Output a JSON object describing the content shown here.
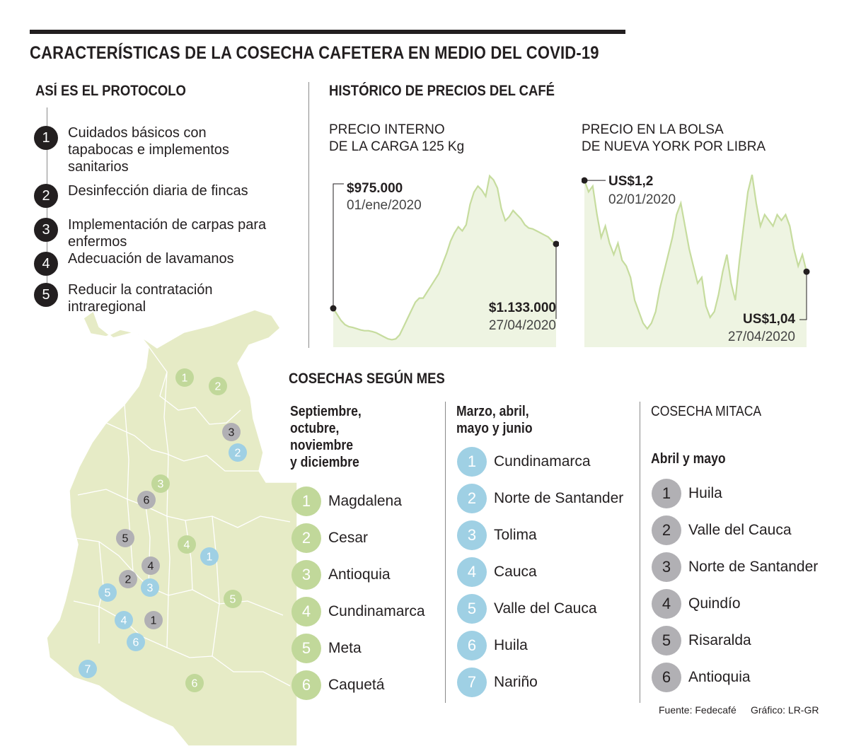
{
  "title": "CARACTERÍSTICAS DE LA COSECHA CAFETERA EN MEDIO DEL COVID-19",
  "protocol": {
    "heading": "ASÍ ES EL PROTOCOLO",
    "steps": [
      {
        "n": "1",
        "text": "Cuidados básicos con tapabocas e implementos sanitarios"
      },
      {
        "n": "2",
        "text": "Desinfección diaria de fincas"
      },
      {
        "n": "3",
        "text": "Implementación de carpas para enfermos"
      },
      {
        "n": "4",
        "text": "Adecuación de lavamanos"
      },
      {
        "n": "5",
        "text": "Reducir la contratación intraregional"
      }
    ]
  },
  "prices": {
    "heading": "HISTÓRICO DE PRECIOS DEL CAFÉ",
    "internal": {
      "label_line1": "PRECIO INTERNO",
      "label_line2": "DE LA CARGA 125 Kg",
      "start_value": "$975.000",
      "start_date": "01/ene/2020",
      "end_value": "$1.133.000",
      "end_date": "27/04/2020"
    },
    "ny": {
      "label_line1": "PRECIO EN LA BOLSA",
      "label_line2": "DE NUEVA YORK POR LIBRA",
      "start_value": "US$1,2",
      "start_date": "02/01/2020",
      "end_value": "US$1,04",
      "end_date": "27/04/2020"
    }
  },
  "chart_data": [
    {
      "type": "area",
      "title": "PRECIO INTERNO DE LA CARGA 125 Kg",
      "x_start": "01/ene/2020",
      "x_end": "27/04/2020",
      "values": [
        975000,
        960000,
        945000,
        935000,
        930000,
        928000,
        925000,
        922000,
        920000,
        920000,
        918000,
        915000,
        910000,
        905000,
        900000,
        898000,
        900000,
        910000,
        930000,
        950000,
        970000,
        990000,
        1000000,
        1000000,
        1015000,
        1030000,
        1045000,
        1060000,
        1085000,
        1110000,
        1140000,
        1160000,
        1175000,
        1165000,
        1180000,
        1230000,
        1260000,
        1275000,
        1265000,
        1250000,
        1300000,
        1290000,
        1270000,
        1220000,
        1190000,
        1200000,
        1215000,
        1205000,
        1195000,
        1180000,
        1172000,
        1170000,
        1165000,
        1160000,
        1155000,
        1150000,
        1140000,
        1133000
      ],
      "start_label": "$975.000",
      "end_label": "$1.133.000",
      "color": "#c6dc9e",
      "fill": "#eef4e2"
    },
    {
      "type": "area",
      "title": "PRECIO EN LA BOLSA DE NUEVA YORK POR LIBRA",
      "x_start": "02/01/2020",
      "x_end": "27/04/2020",
      "values": [
        1.2,
        1.18,
        1.19,
        1.14,
        1.1,
        1.12,
        1.09,
        1.07,
        1.09,
        1.06,
        1.05,
        1.03,
        0.99,
        0.97,
        0.95,
        0.94,
        0.95,
        0.97,
        1.01,
        1.04,
        1.07,
        1.1,
        1.14,
        1.16,
        1.12,
        1.08,
        1.05,
        1.02,
        1.03,
        0.98,
        0.96,
        0.97,
        1.0,
        1.04,
        1.07,
        1.02,
        0.99,
        1.06,
        1.12,
        1.18,
        1.21,
        1.16,
        1.12,
        1.14,
        1.13,
        1.12,
        1.14,
        1.13,
        1.14,
        1.12,
        1.08,
        1.05,
        1.07,
        1.04
      ],
      "start_label": "US$1,2",
      "end_label": "US$1,04",
      "color": "#c6dc9e",
      "fill": "#eef4e2"
    }
  ],
  "harvest": {
    "heading": "COSECHAS SEGÚN MES",
    "col1": {
      "head_lines": [
        "Septiembre,",
        "octubre,",
        "noviembre",
        "y diciembre"
      ],
      "color": "#c1d89a",
      "items": [
        {
          "n": "1",
          "name": "Magdalena"
        },
        {
          "n": "2",
          "name": "Cesar"
        },
        {
          "n": "3",
          "name": "Antioquia"
        },
        {
          "n": "4",
          "name": "Cundinamarca"
        },
        {
          "n": "5",
          "name": "Meta"
        },
        {
          "n": "6",
          "name": "Caquetá"
        }
      ]
    },
    "col2": {
      "head_lines": [
        "Marzo, abril,",
        "mayo y junio"
      ],
      "color": "#9fd0e4",
      "items": [
        {
          "n": "1",
          "name": "Cundinamarca"
        },
        {
          "n": "2",
          "name": "Norte de Santander"
        },
        {
          "n": "3",
          "name": "Tolima"
        },
        {
          "n": "4",
          "name": "Cauca"
        },
        {
          "n": "5",
          "name": "Valle del Cauca"
        },
        {
          "n": "6",
          "name": "Huila"
        },
        {
          "n": "7",
          "name": "Nariño"
        }
      ]
    },
    "col3": {
      "head": "COSECHA MITACA",
      "subhead": "Abril y mayo",
      "color": "#b1b0b4",
      "items": [
        {
          "n": "1",
          "name": "Huila"
        },
        {
          "n": "2",
          "name": "Valle del Cauca"
        },
        {
          "n": "3",
          "name": "Norte de Santander"
        },
        {
          "n": "4",
          "name": "Quindío"
        },
        {
          "n": "5",
          "name": "Risaralda"
        },
        {
          "n": "6",
          "name": "Antioquia"
        }
      ]
    }
  },
  "map_markers": {
    "green": [
      "1",
      "2",
      "3",
      "4",
      "5",
      "6"
    ],
    "blue": [
      "1",
      "2",
      "3",
      "4",
      "5",
      "6",
      "7"
    ],
    "grey": [
      "1",
      "2",
      "3",
      "4",
      "5",
      "6"
    ]
  },
  "source": "Fuente: Fedecafé",
  "credit": "Gráfico: LR-GR"
}
